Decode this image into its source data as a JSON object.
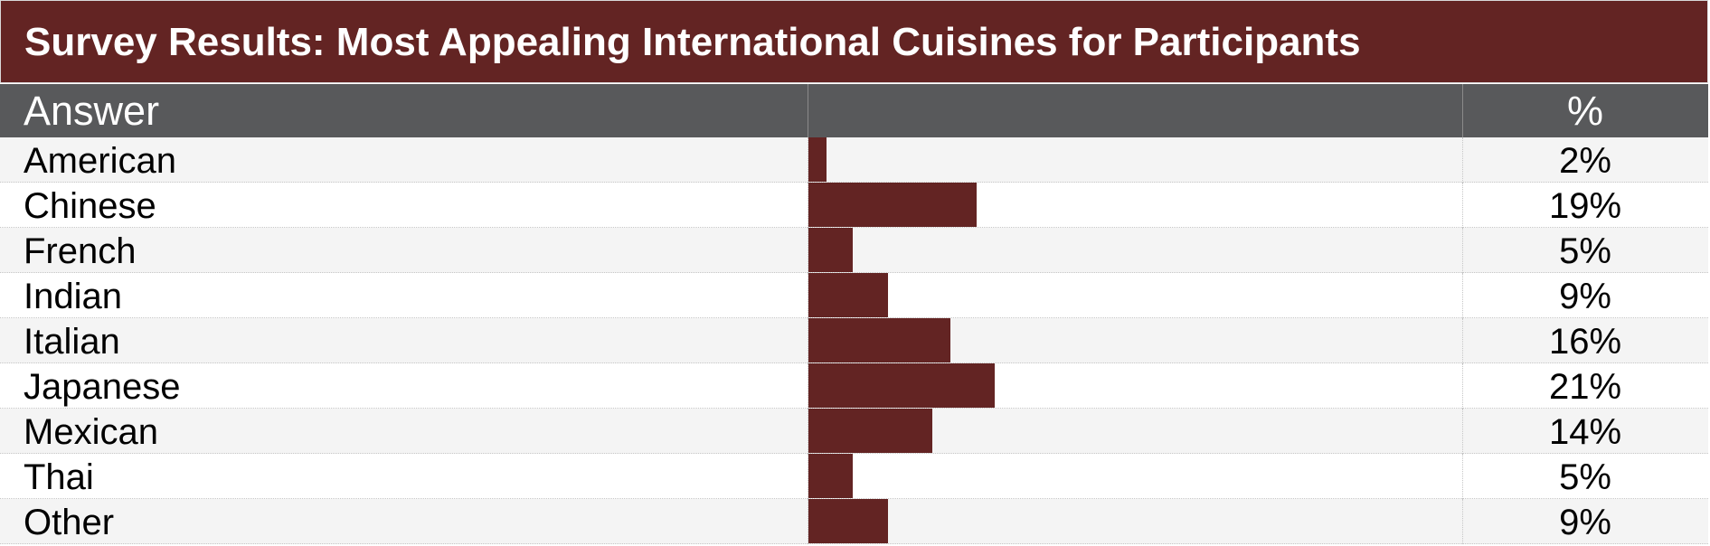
{
  "title": "Survey Results: Most Appealing International Cuisines for Participants",
  "header": {
    "answer": "Answer",
    "bar": "",
    "pct": "%"
  },
  "colors": {
    "title_bg": "#632423",
    "header_bg": "#58595b",
    "bar": "#632423",
    "row_alt": "#f4f4f4"
  },
  "chart_data": {
    "type": "bar",
    "title": "Survey Results: Most Appealing International Cuisines for Participants",
    "orientation": "horizontal",
    "xlim": [
      0,
      100
    ],
    "categories": [
      "American",
      "Chinese",
      "French",
      "Indian",
      "Italian",
      "Japanese",
      "Mexican",
      "Thai",
      "Other"
    ],
    "values": [
      2,
      19,
      5,
      9,
      16,
      21,
      14,
      5,
      9
    ],
    "value_labels": [
      "2%",
      "19%",
      "5%",
      "9%",
      "16%",
      "21%",
      "14%",
      "5%",
      "9%"
    ]
  }
}
